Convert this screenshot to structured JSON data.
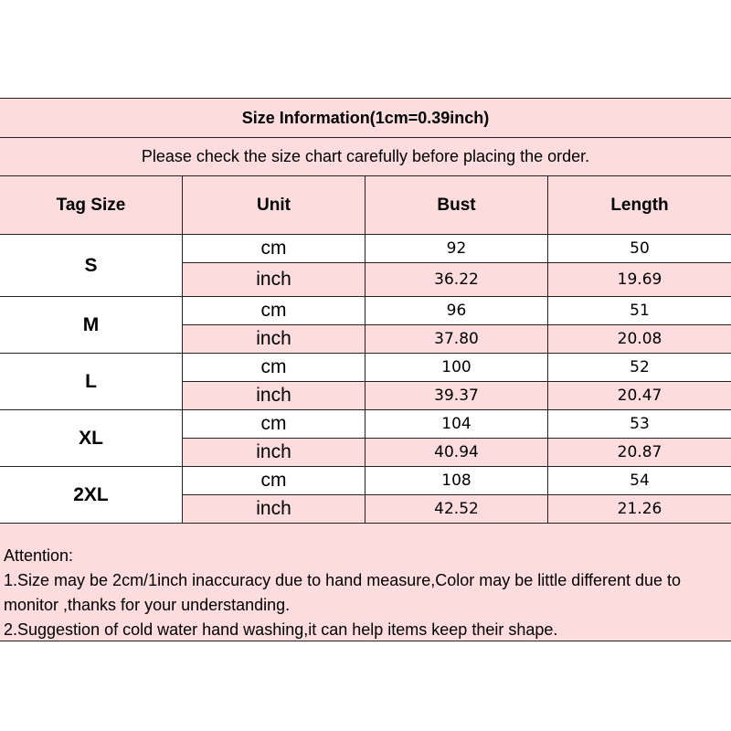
{
  "title": "Size Information(1cm=0.39inch)",
  "subtitle": "Please check the size chart carefully before placing the order.",
  "headers": [
    "Tag Size",
    "Unit",
    "Bust",
    "Length"
  ],
  "sizes": [
    {
      "tag": "S",
      "rows": [
        {
          "unit": "cm",
          "bust": "92",
          "length": "50"
        },
        {
          "unit": "inch",
          "bust": "36.22",
          "length": "19.69"
        }
      ]
    },
    {
      "tag": "M",
      "rows": [
        {
          "unit": "cm",
          "bust": "96",
          "length": "51"
        },
        {
          "unit": "inch",
          "bust": "37.80",
          "length": "20.08"
        }
      ]
    },
    {
      "tag": "L",
      "rows": [
        {
          "unit": "cm",
          "bust": "100",
          "length": "52"
        },
        {
          "unit": "inch",
          "bust": "39.37",
          "length": "20.47"
        }
      ]
    },
    {
      "tag": "XL",
      "rows": [
        {
          "unit": "cm",
          "bust": "104",
          "length": "53"
        },
        {
          "unit": "inch",
          "bust": "40.94",
          "length": "20.87"
        }
      ]
    },
    {
      "tag": "2XL",
      "rows": [
        {
          "unit": "cm",
          "bust": "108",
          "length": "54"
        },
        {
          "unit": "inch",
          "bust": "42.52",
          "length": "21.26"
        }
      ]
    }
  ],
  "attention": [
    "Attention:",
    "1.Size may be 2cm/1inch inaccuracy due to hand measure,Color may be little different due to monitor ,thanks for your understanding.",
    "2.Suggestion of cold water hand washing,it can help items keep their shape."
  ],
  "colors": {
    "pink": "#fcdcdc",
    "border": "#222222"
  }
}
